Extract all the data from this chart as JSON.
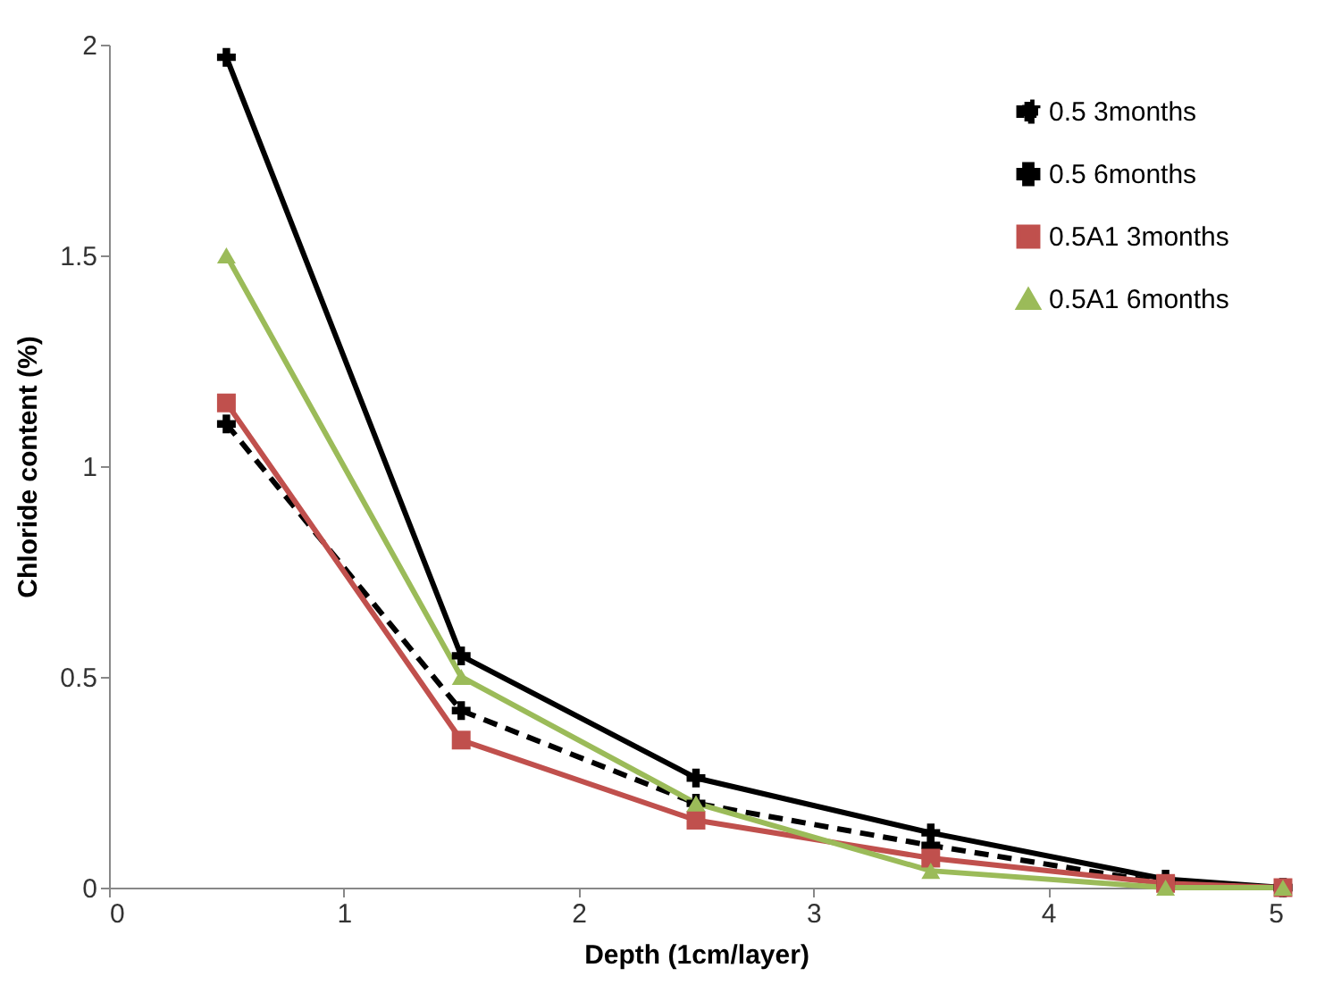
{
  "chart_data": {
    "type": "line",
    "xlabel": "Depth (1cm/layer)",
    "ylabel": "Chloride content (%)",
    "x": [
      0.5,
      1.5,
      2.5,
      3.5,
      4.5,
      5
    ],
    "series": [
      {
        "name": "0.5 3months",
        "color": "#000000",
        "line_style": "dashed",
        "marker": "cross",
        "values": [
          1.1,
          0.42,
          0.2,
          0.1,
          0.01,
          0
        ]
      },
      {
        "name": "0.5 6months",
        "color": "#000000",
        "line_style": "solid",
        "marker": "cross",
        "values": [
          1.97,
          0.55,
          0.26,
          0.13,
          0.02,
          0
        ]
      },
      {
        "name": "0.5A1 3months",
        "color": "#c0504d",
        "line_style": "solid",
        "marker": "square",
        "values": [
          1.15,
          0.35,
          0.16,
          0.07,
          0.01,
          0
        ]
      },
      {
        "name": "0.5A1 6months",
        "color": "#9bbb59",
        "line_style": "solid",
        "marker": "triangle",
        "values": [
          1.5,
          0.5,
          0.2,
          0.04,
          0,
          0
        ]
      }
    ],
    "xlim": [
      0,
      5
    ],
    "xticks": [
      0,
      1,
      2,
      3,
      4,
      5
    ],
    "ylim": [
      0,
      2
    ],
    "yticks": [
      0,
      0.5,
      1,
      1.5,
      2
    ],
    "grid": false,
    "legend": "top right"
  }
}
